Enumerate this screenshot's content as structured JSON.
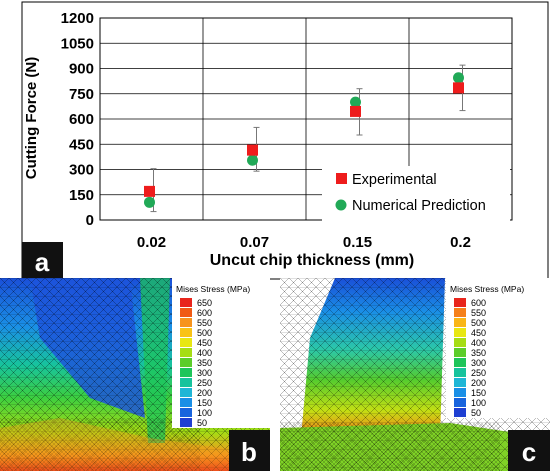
{
  "chart_data": {
    "type": "scatter",
    "xlabel": "Uncut chip thickness (mm)",
    "ylabel": "Cutting Force (N)",
    "categories": [
      "0.02",
      "0.07",
      "0.15",
      "0.2"
    ],
    "ylim": [
      0,
      1200
    ],
    "yticks": [
      0,
      150,
      300,
      450,
      600,
      750,
      900,
      1050,
      1200
    ],
    "grid": true,
    "legend_position": "bottom-right",
    "series": [
      {
        "name": "Experimental",
        "marker": "square",
        "color": "#ee1c1c",
        "values": [
          170,
          415,
          645,
          785
        ],
        "error_low": [
          50,
          290,
          505,
          650
        ],
        "error_high": [
          305,
          550,
          780,
          920
        ]
      },
      {
        "name": "Numerical Prediction",
        "marker": "circle",
        "color": "#21a957",
        "values": [
          105,
          355,
          700,
          845
        ]
      }
    ]
  },
  "panel_labels": {
    "a": "a",
    "b": "b",
    "c": "c"
  },
  "fem_b": {
    "legend_title": "Mises Stress (MPa)",
    "levels": [
      "650",
      "600",
      "550",
      "500",
      "450",
      "400",
      "350",
      "300",
      "250",
      "200",
      "150",
      "100",
      "50"
    ],
    "colors": [
      "#e8251c",
      "#f05a14",
      "#f7941d",
      "#f9c316",
      "#e8e712",
      "#a6dd14",
      "#5ccd2a",
      "#1ec55a",
      "#17c39d",
      "#1fb6d6",
      "#1a8fe6",
      "#1864dd",
      "#1e3fd2"
    ]
  },
  "fem_c": {
    "legend_title": "Mises Stress (MPa)",
    "levels": [
      "600",
      "550",
      "500",
      "450",
      "400",
      "350",
      "300",
      "250",
      "200",
      "150",
      "100",
      "50"
    ],
    "colors": [
      "#e8251c",
      "#f5801a",
      "#f9b617",
      "#e8e712",
      "#a6dd14",
      "#5ccd2a",
      "#1ec55a",
      "#17c39d",
      "#1fb6d6",
      "#1a8fe6",
      "#1864dd",
      "#1e3fd2"
    ]
  }
}
